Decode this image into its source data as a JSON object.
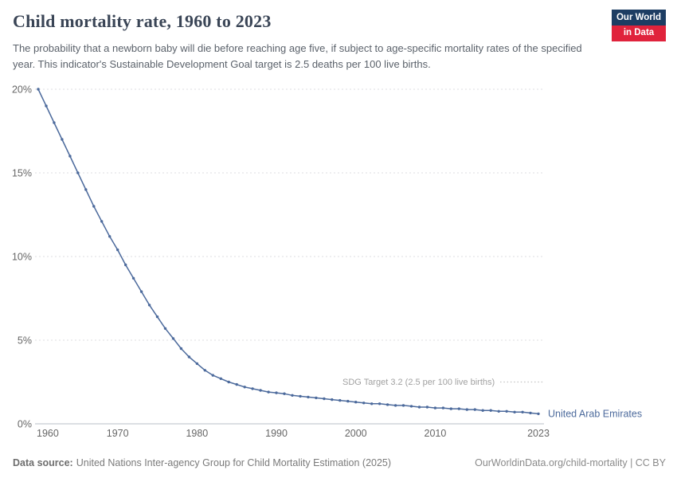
{
  "header": {
    "title": "Child mortality rate, 1960 to 2023",
    "subtitle": "The probability that a newborn baby will die before reaching age five, if subject to age-specific mortality rates of the specified year. This indicator's Sustainable Development Goal target is 2.5 deaths per 100 live births.",
    "logo": {
      "line1": "Our World",
      "line2": "in Data",
      "bg_color": "#1d3d63",
      "accent_color": "#e0233c"
    }
  },
  "chart_data": {
    "type": "line",
    "title": "Child mortality rate, 1960 to 2023",
    "entity": "United Arab Emirates",
    "unit": "%",
    "line_color": "#4c6a9c",
    "ylim": [
      0,
      20
    ],
    "grid": "horizontal-dashed",
    "x": [
      1960,
      1961,
      1962,
      1963,
      1964,
      1965,
      1966,
      1967,
      1968,
      1969,
      1970,
      1971,
      1972,
      1973,
      1974,
      1975,
      1976,
      1977,
      1978,
      1979,
      1980,
      1981,
      1982,
      1983,
      1984,
      1985,
      1986,
      1987,
      1988,
      1989,
      1990,
      1991,
      1992,
      1993,
      1994,
      1995,
      1996,
      1997,
      1998,
      1999,
      2000,
      2001,
      2002,
      2003,
      2004,
      2005,
      2006,
      2007,
      2008,
      2009,
      2010,
      2011,
      2012,
      2013,
      2014,
      2015,
      2016,
      2017,
      2018,
      2019,
      2020,
      2021,
      2022,
      2023
    ],
    "values": [
      20.0,
      19.0,
      18.0,
      17.0,
      16.0,
      15.0,
      14.0,
      13.0,
      12.1,
      11.2,
      10.4,
      9.5,
      8.7,
      7.9,
      7.1,
      6.4,
      5.7,
      5.1,
      4.5,
      4.0,
      3.6,
      3.2,
      2.9,
      2.7,
      2.5,
      2.35,
      2.2,
      2.1,
      2.0,
      1.9,
      1.85,
      1.8,
      1.7,
      1.65,
      1.6,
      1.55,
      1.5,
      1.45,
      1.4,
      1.35,
      1.3,
      1.25,
      1.2,
      1.2,
      1.15,
      1.1,
      1.1,
      1.05,
      1.0,
      1.0,
      0.95,
      0.95,
      0.9,
      0.9,
      0.85,
      0.85,
      0.8,
      0.8,
      0.75,
      0.75,
      0.7,
      0.7,
      0.65,
      0.6
    ],
    "yticks": [
      {
        "value": 0,
        "label": "0%"
      },
      {
        "value": 5,
        "label": "5%"
      },
      {
        "value": 10,
        "label": "10%"
      },
      {
        "value": 15,
        "label": "15%"
      },
      {
        "value": 20,
        "label": "20%"
      }
    ],
    "xticks": [
      {
        "year": 1960,
        "label": "1960"
      },
      {
        "year": 1970,
        "label": "1970"
      },
      {
        "year": 1980,
        "label": "1980"
      },
      {
        "year": 1990,
        "label": "1990"
      },
      {
        "year": 2000,
        "label": "2000"
      },
      {
        "year": 2010,
        "label": "2010"
      },
      {
        "year": 2023,
        "label": "2023"
      }
    ],
    "target_line": {
      "value": 2.5,
      "label": "SDG Target 3.2 (2.5 per 100 live births)"
    }
  },
  "footer": {
    "source_label": "Data source:",
    "source_text": "United Nations Inter-agency Group for Child Mortality Estimation (2025)",
    "link_text": "OurWorldinData.org/child-mortality | CC BY"
  }
}
